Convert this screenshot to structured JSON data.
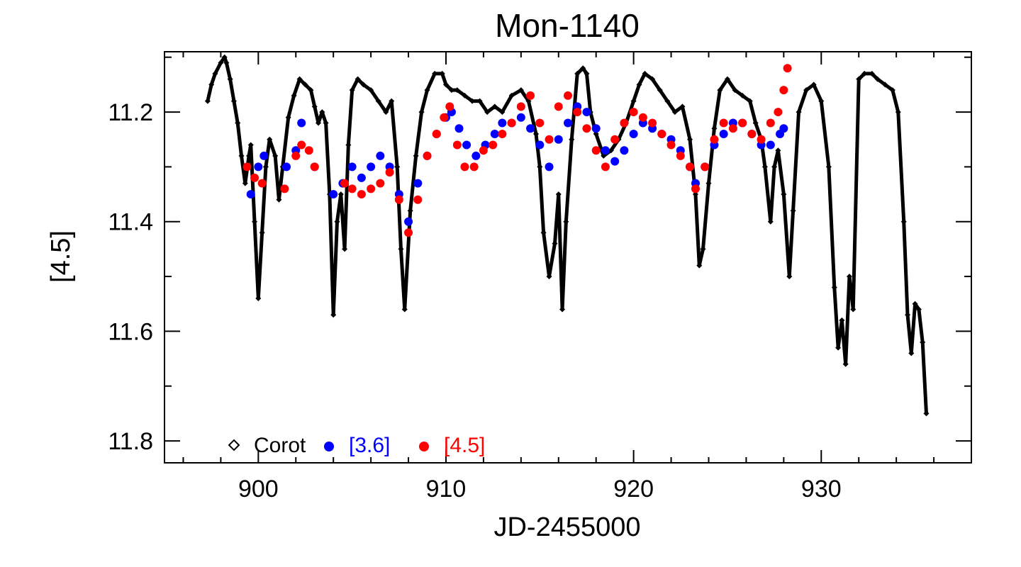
{
  "chart_data": {
    "type": "scatter",
    "title": "Mon-1140",
    "xlabel": "JD-2455000",
    "ylabel": "[4.5]",
    "xlim": [
      895,
      938
    ],
    "ylim": [
      11.84,
      11.09
    ],
    "y_inverted": true,
    "x_ticks": [
      900,
      910,
      920,
      930
    ],
    "x_tick_labels": [
      "900",
      "910",
      "920",
      "930"
    ],
    "y_ticks": [
      11.2,
      11.4,
      11.6,
      11.8
    ],
    "y_tick_labels": [
      "11.2",
      "11.4",
      "11.6",
      "11.8"
    ],
    "legend_position": "bottom-left",
    "series": [
      {
        "name": "Corot",
        "marker": "diamond",
        "color": "#000000",
        "x": [
          897.3,
          897.5,
          897.7,
          898.0,
          898.2,
          898.3,
          898.5,
          898.7,
          898.9,
          899.1,
          899.3,
          899.5,
          899.6,
          899.8,
          900.0,
          900.2,
          900.4,
          900.6,
          900.9,
          901.1,
          901.3,
          901.6,
          901.9,
          902.2,
          902.5,
          902.8,
          903.0,
          903.2,
          903.4,
          903.6,
          903.8,
          904.0,
          904.2,
          904.4,
          904.6,
          904.8,
          905.0,
          905.3,
          905.6,
          906.0,
          906.4,
          906.8,
          907.1,
          907.4,
          907.6,
          907.8,
          908.1,
          908.4,
          908.7,
          909.0,
          909.4,
          909.8,
          910.0,
          910.3,
          910.6,
          911.0,
          911.4,
          911.8,
          912.2,
          912.6,
          913.0,
          913.5,
          914.0,
          914.4,
          914.8,
          915.0,
          915.2,
          915.5,
          915.8,
          916.0,
          916.2,
          916.4,
          916.7,
          917.0,
          917.3,
          917.5,
          917.7,
          918.0,
          918.4,
          918.8,
          919.2,
          919.6,
          920.0,
          920.3,
          920.6,
          921.0,
          921.4,
          921.8,
          922.2,
          922.6,
          923.0,
          923.3,
          923.5,
          923.7,
          924.0,
          924.3,
          924.6,
          925.0,
          925.4,
          925.8,
          926.2,
          926.5,
          926.8,
          927.0,
          927.3,
          927.5,
          927.7,
          928.0,
          928.3,
          928.5,
          928.8,
          929.2,
          929.6,
          930.0,
          930.4,
          930.7,
          930.9,
          931.1,
          931.3,
          931.5,
          931.7,
          932.0,
          932.3,
          932.7,
          933.0,
          933.4,
          933.8,
          934.1,
          934.4,
          934.6,
          934.8,
          935.0,
          935.2,
          935.4,
          935.6
        ],
        "y": [
          11.18,
          11.15,
          11.13,
          11.11,
          11.1,
          11.11,
          11.14,
          11.18,
          11.22,
          11.28,
          11.33,
          11.28,
          11.26,
          11.4,
          11.54,
          11.42,
          11.3,
          11.25,
          11.28,
          11.36,
          11.3,
          11.21,
          11.17,
          11.14,
          11.15,
          11.16,
          11.19,
          11.22,
          11.2,
          11.22,
          11.35,
          11.57,
          11.4,
          11.35,
          11.45,
          11.26,
          11.16,
          11.14,
          11.15,
          11.16,
          11.18,
          11.2,
          11.18,
          11.3,
          11.45,
          11.56,
          11.38,
          11.28,
          11.2,
          11.16,
          11.13,
          11.13,
          11.15,
          11.16,
          11.16,
          11.17,
          11.18,
          11.18,
          11.2,
          11.19,
          11.2,
          11.17,
          11.16,
          11.18,
          11.24,
          11.3,
          11.42,
          11.5,
          11.44,
          11.35,
          11.56,
          11.4,
          11.25,
          11.13,
          11.12,
          11.13,
          11.2,
          11.24,
          11.28,
          11.27,
          11.25,
          11.22,
          11.18,
          11.15,
          11.13,
          11.14,
          11.16,
          11.18,
          11.2,
          11.19,
          11.25,
          11.35,
          11.48,
          11.45,
          11.33,
          11.23,
          11.16,
          11.14,
          11.16,
          11.17,
          11.18,
          11.22,
          11.25,
          11.3,
          11.4,
          11.3,
          11.27,
          11.35,
          11.5,
          11.38,
          11.2,
          11.16,
          11.15,
          11.18,
          11.3,
          11.52,
          11.63,
          11.58,
          11.66,
          11.5,
          11.56,
          11.14,
          11.13,
          11.13,
          11.14,
          11.15,
          11.16,
          11.2,
          11.4,
          11.57,
          11.64,
          11.55,
          11.56,
          11.62,
          11.75
        ]
      },
      {
        "name": "[3.6]",
        "marker": "circle",
        "color": "#0000ff",
        "x": [
          899.6,
          900.0,
          900.3,
          901.5,
          902.0,
          902.3,
          903.0,
          904.0,
          904.5,
          905.0,
          905.5,
          906.0,
          906.5,
          907.0,
          907.5,
          908.0,
          908.5,
          909.0,
          909.5,
          910.0,
          910.3,
          910.7,
          911.1,
          911.6,
          912.1,
          912.6,
          913.0,
          913.5,
          914.0,
          914.5,
          915.0,
          915.5,
          916.0,
          916.5,
          917.0,
          917.5,
          918.0,
          918.5,
          919.0,
          919.5,
          920.0,
          920.5,
          921.0,
          921.5,
          922.0,
          922.5,
          923.0,
          923.3,
          923.8,
          924.3,
          924.8,
          925.3,
          925.8,
          926.3,
          926.8,
          927.3,
          927.8,
          928.0
        ],
        "y": [
          11.35,
          11.3,
          11.28,
          11.3,
          11.27,
          11.22,
          11.3,
          11.35,
          11.33,
          11.3,
          11.32,
          11.3,
          11.28,
          11.3,
          11.35,
          11.4,
          11.33,
          11.28,
          11.24,
          11.21,
          11.2,
          11.23,
          11.26,
          11.28,
          11.26,
          11.24,
          11.22,
          11.22,
          11.21,
          11.23,
          11.26,
          11.3,
          11.25,
          11.22,
          11.19,
          11.2,
          11.23,
          11.27,
          11.29,
          11.27,
          11.24,
          11.22,
          11.23,
          11.24,
          11.25,
          11.27,
          11.3,
          11.33,
          11.3,
          11.26,
          11.24,
          11.22,
          11.22,
          11.24,
          11.26,
          11.26,
          11.24,
          11.23
        ]
      },
      {
        "name": "[4.5]",
        "marker": "circle",
        "color": "#ff0000",
        "x": [
          899.4,
          899.8,
          900.2,
          901.4,
          902.0,
          902.3,
          902.7,
          903.0,
          904.6,
          905.0,
          905.5,
          906.0,
          906.5,
          907.0,
          907.5,
          908.0,
          908.5,
          909.0,
          909.5,
          909.9,
          910.2,
          910.6,
          911.0,
          911.5,
          912.0,
          912.5,
          913.0,
          913.5,
          914.0,
          914.5,
          915.0,
          915.5,
          916.0,
          916.5,
          917.0,
          917.5,
          918.0,
          918.5,
          919.0,
          919.5,
          920.0,
          920.5,
          921.0,
          921.5,
          922.0,
          922.5,
          923.0,
          923.3,
          923.8,
          924.3,
          924.8,
          925.3,
          925.8,
          926.3,
          926.8,
          927.3,
          927.7,
          928.0,
          928.2
        ],
        "y": [
          11.3,
          11.32,
          11.33,
          11.34,
          11.28,
          11.26,
          11.27,
          11.3,
          11.33,
          11.34,
          11.35,
          11.34,
          11.33,
          11.31,
          11.36,
          11.42,
          11.36,
          11.28,
          11.24,
          11.21,
          11.19,
          11.26,
          11.3,
          11.3,
          11.27,
          11.26,
          11.24,
          11.22,
          11.19,
          11.17,
          11.22,
          11.25,
          11.19,
          11.17,
          11.2,
          11.23,
          11.27,
          11.3,
          11.25,
          11.22,
          11.2,
          11.21,
          11.22,
          11.24,
          11.26,
          11.28,
          11.3,
          11.34,
          11.3,
          11.25,
          11.22,
          11.23,
          11.22,
          11.24,
          11.25,
          11.22,
          11.2,
          11.16,
          11.12
        ]
      }
    ]
  }
}
